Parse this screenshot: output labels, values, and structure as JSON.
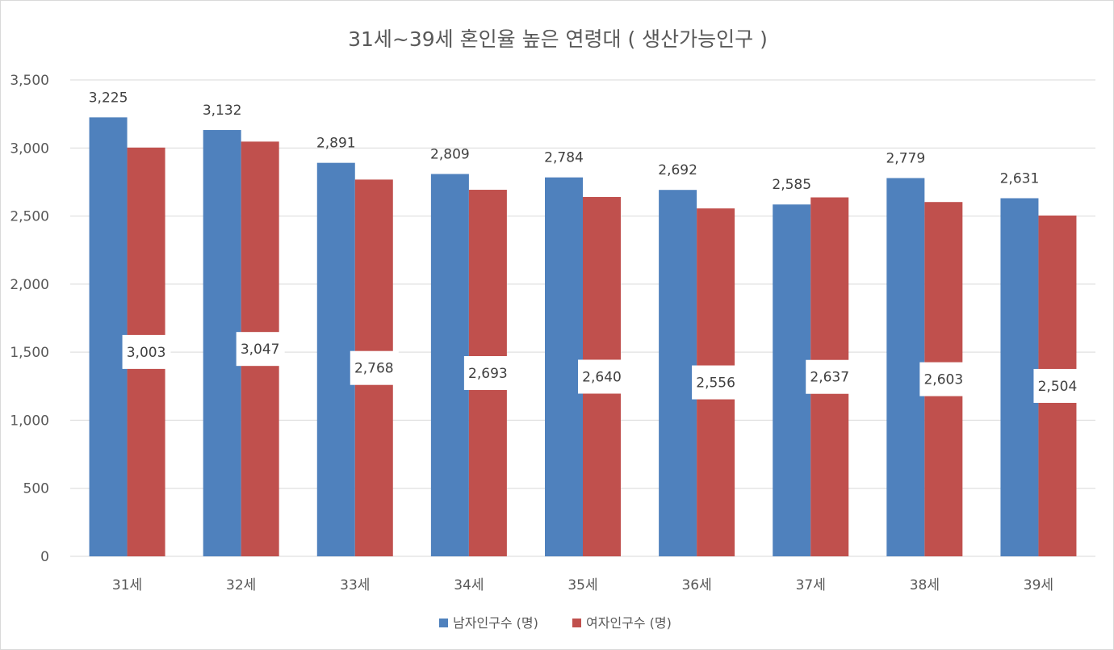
{
  "chart_data": {
    "type": "bar",
    "title": "31세~39세 혼인율 높은 연령대 ( 생산가능인구 )",
    "categories": [
      "31세",
      "32세",
      "33세",
      "34세",
      "35세",
      "36세",
      "37세",
      "38세",
      "39세"
    ],
    "series": [
      {
        "name": "남자인구수 (명)",
        "color": "#4f81bd",
        "values": [
          3225,
          3132,
          2891,
          2809,
          2784,
          2692,
          2585,
          2779,
          2631
        ],
        "labels": [
          "3,225",
          "3,132",
          "2,891",
          "2,809",
          "2,784",
          "2,692",
          "2,585",
          "2,779",
          "2,631"
        ]
      },
      {
        "name": "여자인구수 (명)",
        "color": "#c0504d",
        "values": [
          3003,
          3047,
          2768,
          2693,
          2640,
          2556,
          2637,
          2603,
          2504
        ],
        "labels": [
          "3,003",
          "3,047",
          "2,768",
          "2,693",
          "2,640",
          "2,556",
          "2,637",
          "2,603",
          "2,504"
        ]
      }
    ],
    "ylim": [
      0,
      3500
    ],
    "yticks": [
      0,
      500,
      1000,
      1500,
      2000,
      2500,
      3000,
      3500
    ],
    "ytick_labels": [
      "0",
      "500",
      "1,000",
      "1,500",
      "2,000",
      "2,500",
      "3,000",
      "3,500"
    ],
    "grid": true,
    "legend_position": "bottom",
    "gridline_color": "#d9d9d9"
  }
}
